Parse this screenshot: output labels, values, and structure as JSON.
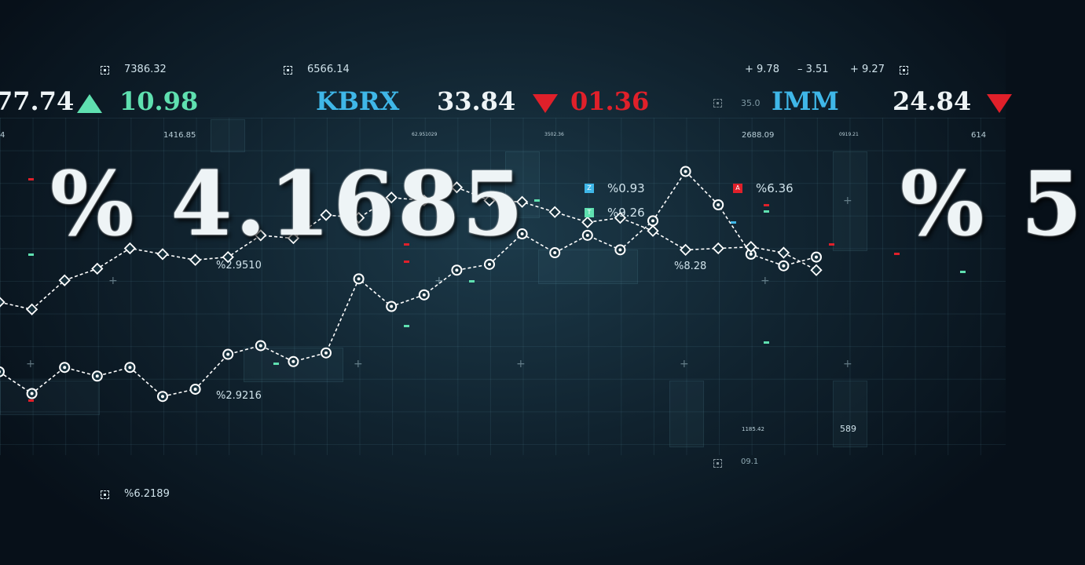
{
  "colors": {
    "cyan": "#3fb7e8",
    "green": "#5fe0b0",
    "red": "#e0202a",
    "white": "#eef4f6"
  },
  "ticker": {
    "top_numbers": [
      "7386.32",
      "6566.14",
      "+ 9.78",
      "– 3.51",
      "+ 9.27"
    ],
    "values": {
      "left_price": "77.74",
      "left_change": "10.98",
      "kbrx_price": "33.84",
      "kbrx_change": "01.36",
      "imm_price": "24.84"
    },
    "symbols": {
      "kbrx": "KBRX",
      "imm": "IMM"
    },
    "sub_numbers": [
      "4",
      "1416.85",
      "62.951029",
      "3502.36",
      "2688.09",
      "0919.21",
      "614"
    ],
    "mid_small": "35.0"
  },
  "big_readout": {
    "main": "% 4.1685",
    "right": "% 5"
  },
  "labels": {
    "l1": "%0.93",
    "l1_badge": "Z",
    "l2": "%9.26",
    "l2_badge": "T",
    "l3": "%6.36",
    "l3_badge": "A",
    "l4": "%2.9510",
    "l5": "%8.28",
    "l6": "%2.9216",
    "bottom_left": "%6.2189",
    "n_589": "589",
    "n_1185": "1185.42",
    "n_091": "09.1"
  },
  "chart_data": {
    "type": "line",
    "title": "",
    "xlabel": "",
    "ylabel": "",
    "series": [
      {
        "marker": "circle",
        "values": [
          2.5,
          1.0,
          2.8,
          2.2,
          2.8,
          0.8,
          1.3,
          3.7,
          4.3,
          3.2,
          3.8,
          8.9,
          7.0,
          7.8,
          9.5,
          9.9,
          12.0,
          10.7,
          11.9,
          10.9,
          12.9,
          16.3,
          14.0,
          10.6,
          9.8,
          10.4
        ]
      },
      {
        "marker": "diamond",
        "values": [
          7.3,
          6.8,
          8.8,
          9.6,
          11.0,
          10.6,
          10.2,
          10.4,
          11.9,
          11.7,
          13.3,
          13.1,
          14.5,
          14.3,
          15.2,
          14.3,
          14.2,
          13.5,
          12.8,
          13.1,
          12.2,
          10.9,
          11.0,
          11.1,
          10.7,
          9.5
        ]
      }
    ],
    "ylim": [
      0,
      20
    ],
    "grid": true
  }
}
